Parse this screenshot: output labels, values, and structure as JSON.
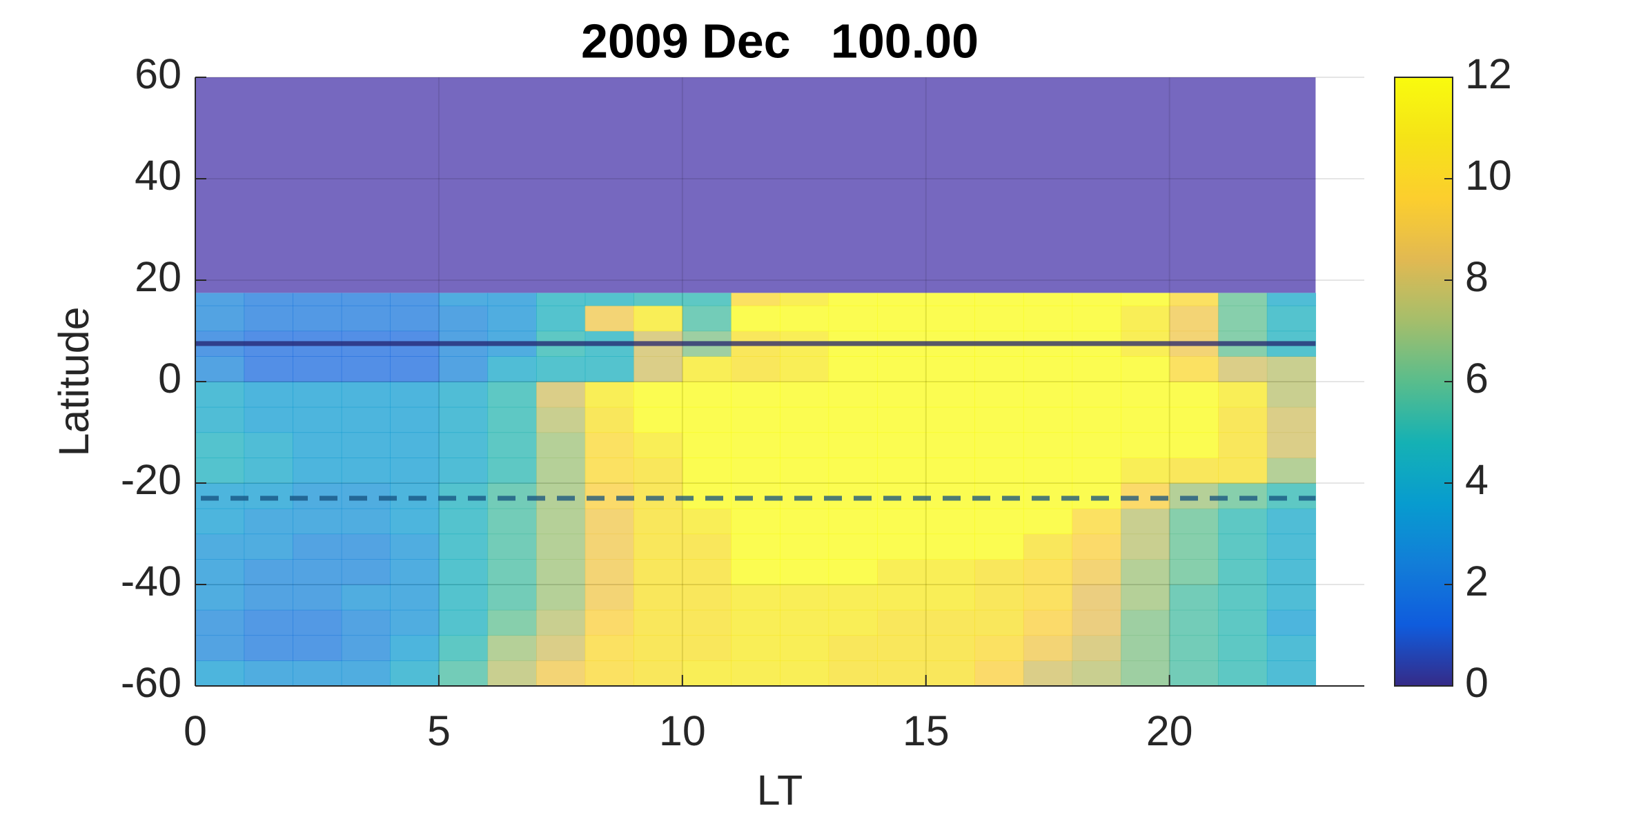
{
  "chart_data": {
    "type": "heatmap",
    "title": "2009 Dec   100.00",
    "xlabel": "LT",
    "ylabel": "Latitude",
    "xlim": [
      0,
      24
    ],
    "ylim": [
      -60,
      60
    ],
    "xticks": [
      0,
      5,
      10,
      15,
      20
    ],
    "yticks": [
      -60,
      -40,
      -20,
      0,
      20,
      40,
      60
    ],
    "grid": true,
    "colormap": "parula",
    "clim": [
      0,
      12
    ],
    "cticks": [
      0,
      2,
      4,
      6,
      8,
      10,
      12
    ],
    "x_edges": [
      0,
      1,
      2,
      3,
      4,
      5,
      6,
      7,
      8,
      9,
      10,
      11,
      12,
      13,
      14,
      15,
      16,
      17,
      18,
      19,
      20,
      21,
      22,
      23
    ],
    "y_edges": [
      -60,
      -55,
      -50,
      -45,
      -40,
      -35,
      -30,
      -25,
      -20,
      -15,
      -10,
      -5,
      0,
      5,
      10,
      15,
      17.5
    ],
    "z": [
      [
        3.5,
        3,
        3,
        3,
        4,
        5.5,
        7.5,
        9,
        10,
        10.5,
        11,
        11,
        11,
        10.5,
        10.5,
        10.5,
        9.5,
        8,
        7.5,
        6.5,
        5.5,
        5,
        4
      ],
      [
        2.5,
        2,
        2,
        2.5,
        3.5,
        5,
        7,
        8,
        10,
        10.5,
        10.5,
        11,
        11,
        10.5,
        10.5,
        10.5,
        10,
        9,
        8,
        6.5,
        5.5,
        5,
        4
      ],
      [
        2.5,
        2,
        2,
        2.5,
        3,
        4.5,
        6,
        7.5,
        9.5,
        10.5,
        10.5,
        11,
        11,
        11,
        10.5,
        10.5,
        10.5,
        9.5,
        8.5,
        6.5,
        5.5,
        5,
        3.5
      ],
      [
        3,
        2.5,
        2.5,
        3,
        3,
        4.5,
        5.5,
        7,
        9,
        10.5,
        10.5,
        11,
        11,
        11,
        11,
        11,
        10.5,
        10,
        8.5,
        7,
        5.5,
        5,
        4
      ],
      [
        3,
        2.5,
        2.5,
        2.5,
        3,
        4.5,
        5.5,
        7,
        9,
        10.5,
        10.5,
        12,
        12,
        12,
        11,
        11,
        10.5,
        10,
        9,
        7,
        6,
        5,
        4
      ],
      [
        3,
        3,
        2.5,
        2.5,
        3,
        4.5,
        5.5,
        7,
        9,
        10.5,
        10.5,
        12,
        12,
        12,
        12,
        12,
        12,
        10.5,
        9.5,
        7.5,
        6,
        5,
        4
      ],
      [
        3.5,
        3,
        3,
        3,
        3.5,
        4.5,
        5.5,
        7,
        9,
        10.5,
        11,
        12,
        12,
        12,
        12,
        12,
        12,
        12,
        10,
        7.5,
        6,
        5,
        4
      ],
      [
        3.5,
        3.5,
        3,
        3,
        3.5,
        4.5,
        5.5,
        7,
        9.5,
        10.5,
        12,
        12,
        12,
        12,
        12,
        12,
        12,
        12,
        12,
        9.5,
        7,
        6,
        5
      ],
      [
        4.5,
        4,
        3.5,
        3.5,
        3.5,
        4,
        5,
        7,
        10,
        10.5,
        12,
        12,
        12,
        12,
        12,
        12,
        12,
        12,
        12,
        11,
        10.5,
        10.5,
        7
      ],
      [
        4.5,
        4,
        3.5,
        3.5,
        3.5,
        4,
        5,
        7,
        10,
        11,
        12,
        12,
        12,
        12,
        12,
        12,
        12,
        12,
        12,
        12,
        12,
        10.5,
        8
      ],
      [
        4,
        3.5,
        3.5,
        3.5,
        3.5,
        4,
        5,
        7.5,
        10.5,
        12,
        12,
        12,
        12,
        12,
        12,
        12,
        12,
        12,
        12,
        12,
        12,
        10.5,
        8
      ],
      [
        4,
        3.5,
        3.5,
        3.5,
        3.5,
        4,
        5,
        8,
        11,
        12,
        12,
        12,
        12,
        12,
        12,
        12,
        12,
        12,
        12,
        12,
        12,
        11,
        7.5
      ],
      [
        2.5,
        1.5,
        1.5,
        1.5,
        1.5,
        2.5,
        4,
        4.5,
        4.5,
        8,
        11,
        10.5,
        11,
        12,
        12,
        12,
        12,
        12,
        12,
        12,
        10,
        8,
        7.5
      ],
      [
        2,
        1.5,
        1.5,
        1.5,
        1.5,
        2.5,
        3,
        5,
        4.5,
        8,
        6.5,
        10.5,
        11,
        12,
        12,
        12,
        12,
        12,
        12,
        11,
        9,
        6,
        4.5
      ],
      [
        2.5,
        2,
        2,
        2,
        2,
        2.5,
        3,
        4.5,
        9,
        11,
        5.5,
        12,
        12,
        12,
        12,
        12,
        12,
        12,
        12,
        11,
        9,
        6,
        4.5
      ],
      [
        2.5,
        2,
        2,
        2,
        2,
        3,
        3,
        4.5,
        4.5,
        5,
        5,
        10,
        11,
        12,
        12,
        12,
        12,
        12,
        12,
        12,
        10,
        6,
        4
      ]
    ],
    "shaded_region": {
      "y": [
        17.5,
        60
      ],
      "color": "#7668bf"
    },
    "hlines": [
      {
        "y": 7.5,
        "style": "solid",
        "color": "#23216e"
      },
      {
        "y": -23,
        "style": "dashed",
        "color": "#14507e"
      }
    ]
  }
}
